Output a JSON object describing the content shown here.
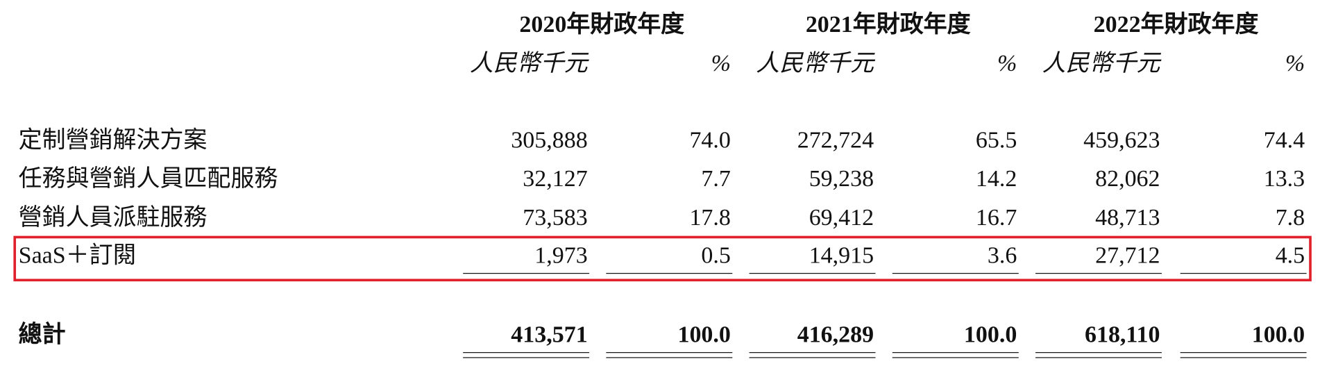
{
  "table": {
    "headers": [
      {
        "year": "2020年財政年度",
        "units": [
          "人民幣千元",
          "%"
        ]
      },
      {
        "year": "2021年財政年度",
        "units": [
          "人民幣千元",
          "%"
        ]
      },
      {
        "year": "2022年財政年度",
        "units": [
          "人民幣千元",
          "%"
        ]
      }
    ],
    "rows": [
      {
        "label": "定制營銷解決方案",
        "cells": [
          "305,888",
          "74.0",
          "272,724",
          "65.5",
          "459,623",
          "74.4"
        ]
      },
      {
        "label": "任務與營銷人員匹配服務",
        "cells": [
          "32,127",
          "7.7",
          "59,238",
          "14.2",
          "82,062",
          "13.3"
        ]
      },
      {
        "label": "營銷人員派駐服務",
        "cells": [
          "73,583",
          "17.8",
          "69,412",
          "16.7",
          "48,713",
          "7.8"
        ]
      },
      {
        "label": "SaaS＋訂閱",
        "cells": [
          "1,973",
          "0.5",
          "14,915",
          "3.6",
          "27,712",
          "4.5"
        ]
      }
    ],
    "total": {
      "label": "總計",
      "cells": [
        "413,571",
        "100.0",
        "416,289",
        "100.0",
        "618,110",
        "100.0"
      ]
    }
  }
}
